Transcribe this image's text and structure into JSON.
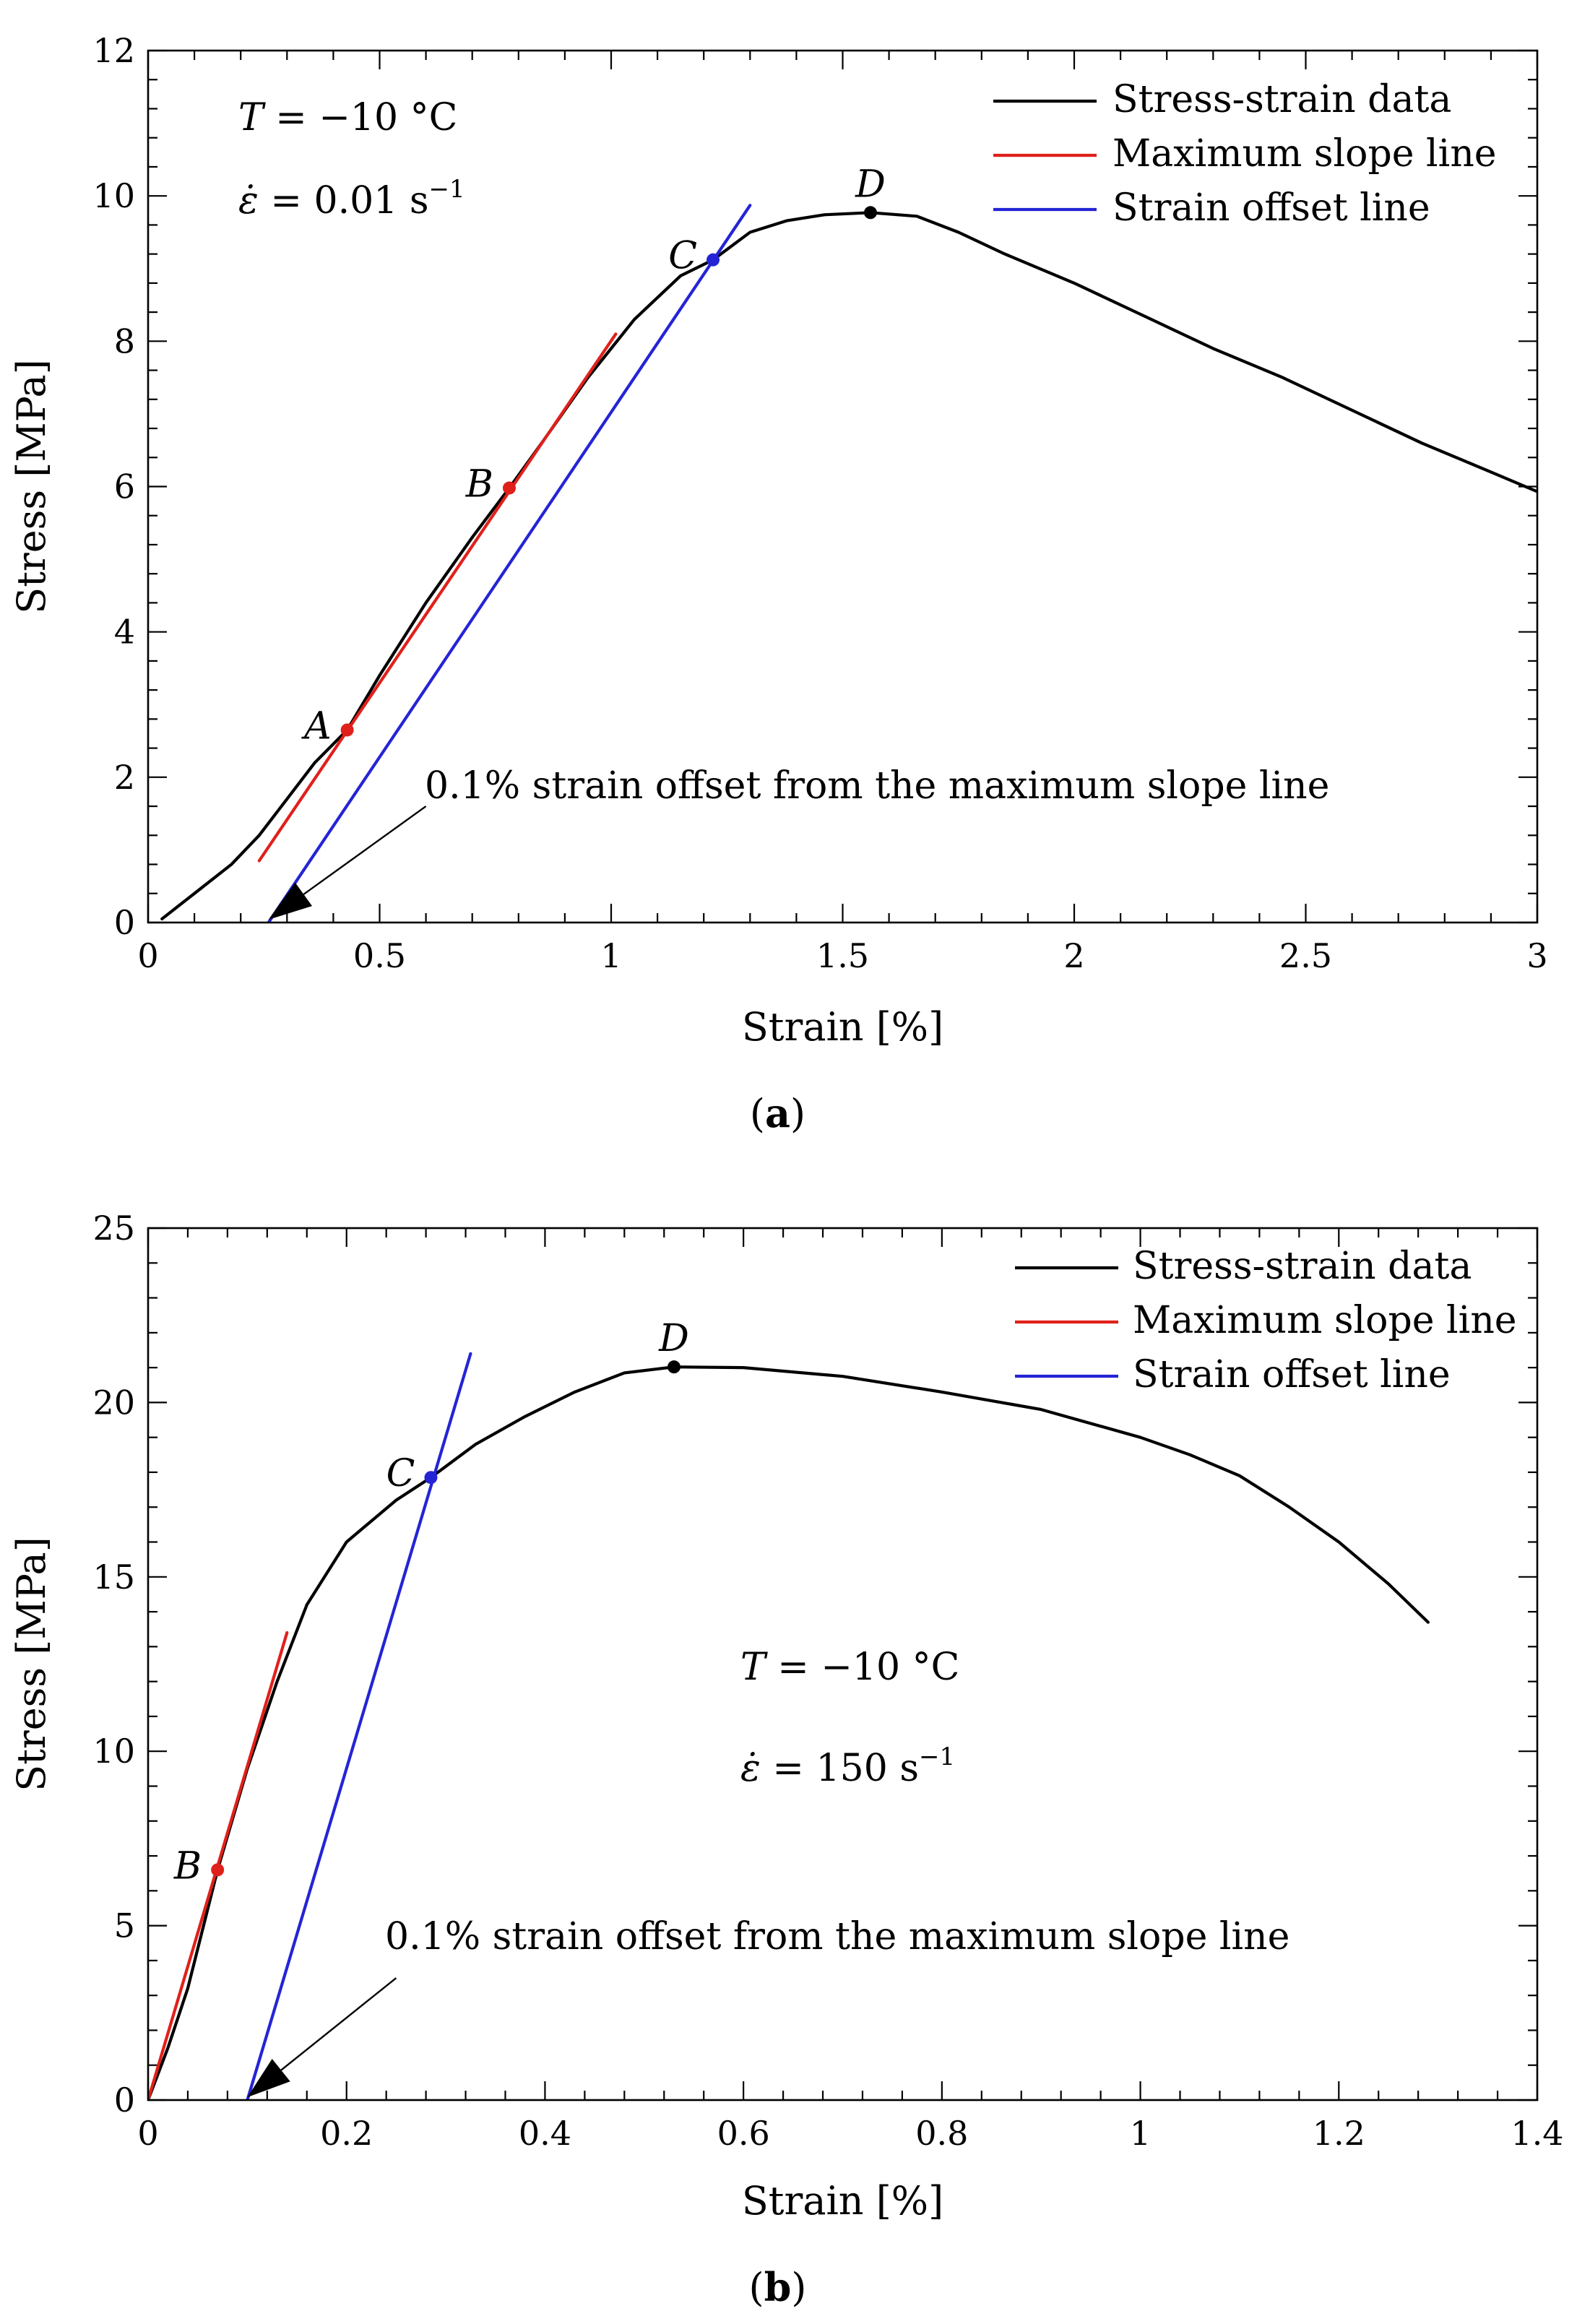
{
  "chart_data": [
    {
      "id": "a",
      "type": "line",
      "caption": "(a)",
      "caption_bold": "a",
      "xlabel": "Strain [%]",
      "ylabel": "Stress [MPa]",
      "xlim": [
        0,
        3
      ],
      "ylim": [
        0,
        12
      ],
      "xticks": [
        0,
        0.5,
        1,
        1.5,
        2,
        2.5,
        3
      ],
      "xtick_labels": [
        "0",
        "0.5",
        "1",
        "1.5",
        "2",
        "2.5",
        "3"
      ],
      "yticks": [
        0,
        2,
        4,
        6,
        8,
        10,
        12
      ],
      "ytick_labels": [
        "0",
        "2",
        "4",
        "6",
        "8",
        "10",
        "12"
      ],
      "legend_position": "top-right",
      "conditions": [
        "T = −10 °C",
        "ε̇ = 0.01 s⁻¹"
      ],
      "series": [
        {
          "name": "Stress-strain data",
          "color": "#000000",
          "points": [
            [
              0.03,
              0.05
            ],
            [
              0.1,
              0.4
            ],
            [
              0.18,
              0.8
            ],
            [
              0.24,
              1.2
            ],
            [
              0.3,
              1.7
            ],
            [
              0.36,
              2.2
            ],
            [
              0.43,
              2.65
            ],
            [
              0.5,
              3.4
            ],
            [
              0.6,
              4.4
            ],
            [
              0.7,
              5.3
            ],
            [
              0.78,
              5.98
            ],
            [
              0.85,
              6.6
            ],
            [
              0.95,
              7.5
            ],
            [
              1.05,
              8.3
            ],
            [
              1.15,
              8.9
            ],
            [
              1.22,
              9.12
            ],
            [
              1.3,
              9.5
            ],
            [
              1.38,
              9.66
            ],
            [
              1.46,
              9.74
            ],
            [
              1.56,
              9.77
            ],
            [
              1.66,
              9.72
            ],
            [
              1.75,
              9.5
            ],
            [
              1.85,
              9.2
            ],
            [
              2.0,
              8.8
            ],
            [
              2.15,
              8.35
            ],
            [
              2.3,
              7.9
            ],
            [
              2.45,
              7.5
            ],
            [
              2.6,
              7.05
            ],
            [
              2.75,
              6.6
            ],
            [
              2.9,
              6.2
            ],
            [
              3.0,
              5.93
            ]
          ]
        },
        {
          "name": "Maximum slope line",
          "color": "#e0201b",
          "points": [
            [
              0.24,
              0.85
            ],
            [
              1.01,
              8.1
            ]
          ]
        },
        {
          "name": "Strain offset line",
          "color": "#2424d6",
          "points": [
            [
              0.26,
              0.0
            ],
            [
              1.3,
              9.87
            ]
          ]
        }
      ],
      "markers": [
        {
          "label": "A",
          "x": 0.43,
          "y": 2.65,
          "color": "#e0201b",
          "label_side": "left"
        },
        {
          "label": "B",
          "x": 0.78,
          "y": 5.98,
          "color": "#e0201b",
          "label_side": "left"
        },
        {
          "label": "C",
          "x": 1.22,
          "y": 9.12,
          "color": "#2424d6",
          "label_side": "left"
        },
        {
          "label": "D",
          "x": 1.56,
          "y": 9.77,
          "color": "#000000",
          "label_side": "top"
        }
      ],
      "annotation": {
        "text": "0.1% strain offset from the maximum slope line",
        "arrow_from": [
          0.6,
          1.6
        ],
        "arrow_to": [
          0.26,
          0.04
        ]
      }
    },
    {
      "id": "b",
      "type": "line",
      "caption": "(b)",
      "caption_bold": "b",
      "xlabel": "Strain [%]",
      "ylabel": "Stress [MPa]",
      "xlim": [
        0,
        1.4
      ],
      "ylim": [
        0,
        25
      ],
      "xticks": [
        0,
        0.2,
        0.4,
        0.6,
        0.8,
        1,
        1.2,
        1.4
      ],
      "xtick_labels": [
        "0",
        "0.2",
        "0.4",
        "0.6",
        "0.8",
        "1",
        "1.2",
        "1.4"
      ],
      "yticks": [
        0,
        5,
        10,
        15,
        20,
        25
      ],
      "ytick_labels": [
        "0",
        "5",
        "10",
        "15",
        "20",
        "25"
      ],
      "legend_position": "top-right",
      "conditions": [
        "T = −10 °C",
        "ε̇ = 150 s⁻¹"
      ],
      "series": [
        {
          "name": "Stress-strain data",
          "color": "#000000",
          "points": [
            [
              0.0,
              0.0
            ],
            [
              0.02,
              1.5
            ],
            [
              0.04,
              3.2
            ],
            [
              0.07,
              6.6
            ],
            [
              0.1,
              9.5
            ],
            [
              0.13,
              12.0
            ],
            [
              0.16,
              14.2
            ],
            [
              0.2,
              16.0
            ],
            [
              0.25,
              17.2
            ],
            [
              0.285,
              17.85
            ],
            [
              0.33,
              18.8
            ],
            [
              0.38,
              19.6
            ],
            [
              0.43,
              20.3
            ],
            [
              0.48,
              20.85
            ],
            [
              0.53,
              21.02
            ],
            [
              0.6,
              21.0
            ],
            [
              0.7,
              20.75
            ],
            [
              0.8,
              20.3
            ],
            [
              0.9,
              19.8
            ],
            [
              1.0,
              19.0
            ],
            [
              1.05,
              18.5
            ],
            [
              1.1,
              17.9
            ],
            [
              1.15,
              17.0
            ],
            [
              1.2,
              16.0
            ],
            [
              1.25,
              14.8
            ],
            [
              1.29,
              13.7
            ]
          ]
        },
        {
          "name": "Maximum slope line",
          "color": "#e0201b",
          "points": [
            [
              0.0,
              0.0
            ],
            [
              0.14,
              13.4
            ]
          ]
        },
        {
          "name": "Strain offset line",
          "color": "#2424d6",
          "points": [
            [
              0.1,
              0.0
            ],
            [
              0.325,
              21.4
            ]
          ]
        }
      ],
      "markers": [
        {
          "label": "B",
          "x": 0.07,
          "y": 6.6,
          "color": "#e0201b",
          "label_side": "left"
        },
        {
          "label": "C",
          "x": 0.285,
          "y": 17.85,
          "color": "#2424d6",
          "label_side": "left"
        },
        {
          "label": "D",
          "x": 0.53,
          "y": 21.02,
          "color": "#000000",
          "label_side": "top"
        }
      ],
      "annotation": {
        "text": "0.1% strain offset from the maximum slope line",
        "arrow_from": [
          0.25,
          3.5
        ],
        "arrow_to": [
          0.1,
          0.08
        ]
      }
    }
  ]
}
